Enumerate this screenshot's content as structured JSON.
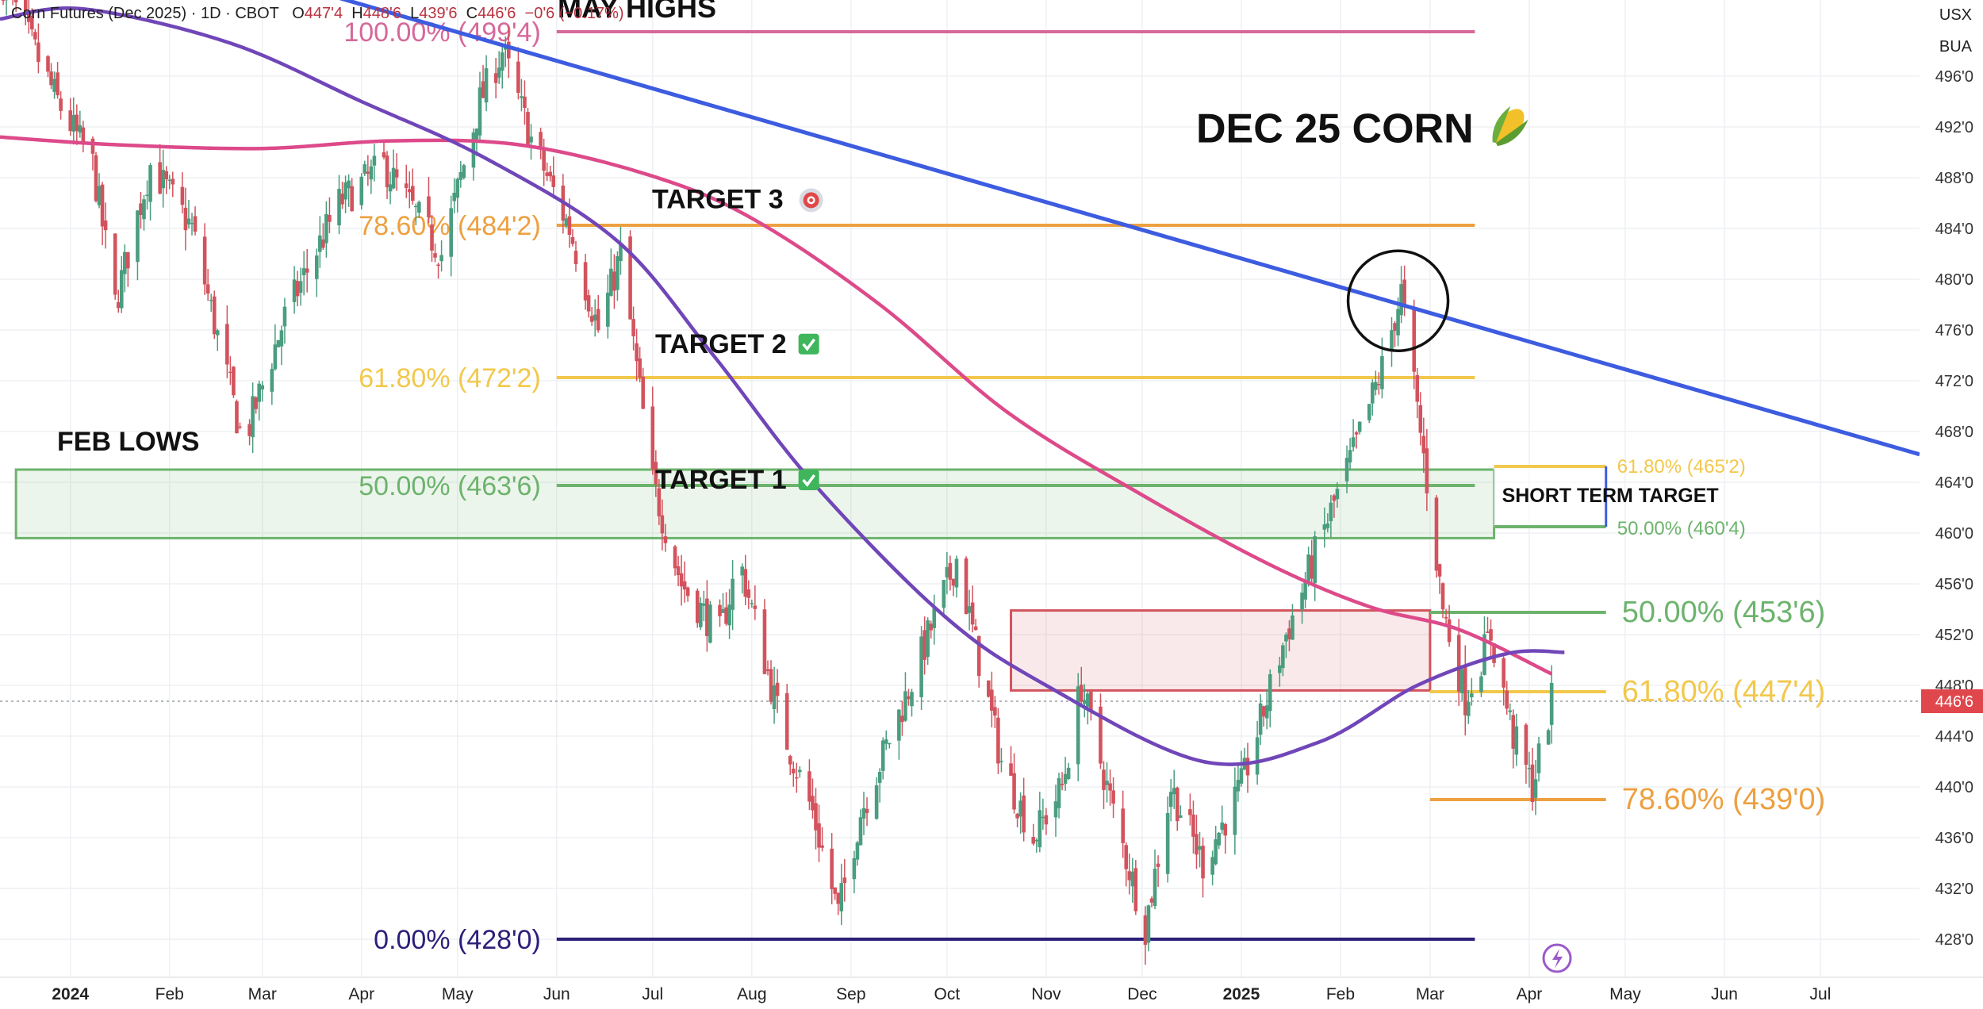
{
  "header": {
    "symbol_text": "Corn Futures (Dec 2025) · 1D · CBOT",
    "o_label": "O",
    "o_value": "447'4",
    "h_label": "H",
    "h_value": "448'6",
    "l_label": "L",
    "l_value": "439'6",
    "c_label": "C",
    "c_value": "446'6",
    "change": "−0'6 (−0.17%)"
  },
  "corner": {
    "currency": "USX",
    "unit": "BUA"
  },
  "colors": {
    "up": "#4a9d7f",
    "down": "#d2535d",
    "trend": "#3d5ce0",
    "ma_pink": "#dd4a8a",
    "ma_purple": "#7046b8",
    "fib100": "#d6689a",
    "fib786": "#eda040",
    "fib618": "#f2c84c",
    "fib50": "#6db36d",
    "fib0": "#2b1f7a",
    "price_tag": "#e0474c"
  },
  "chart_data": {
    "type": "candlestick",
    "title": "DEC 25 CORN",
    "title_icon": "corn-emoji",
    "y_axis": {
      "min": 425.0,
      "max": 502.0,
      "ticks": [
        {
          "v": 496,
          "l": "496'0"
        },
        {
          "v": 492,
          "l": "492'0"
        },
        {
          "v": 488,
          "l": "488'0"
        },
        {
          "v": 484,
          "l": "484'0"
        },
        {
          "v": 480,
          "l": "480'0"
        },
        {
          "v": 476,
          "l": "476'0"
        },
        {
          "v": 472,
          "l": "472'0"
        },
        {
          "v": 468,
          "l": "468'0"
        },
        {
          "v": 464,
          "l": "464'0"
        },
        {
          "v": 460,
          "l": "460'0"
        },
        {
          "v": 456,
          "l": "456'0"
        },
        {
          "v": 452,
          "l": "452'0"
        },
        {
          "v": 448,
          "l": "448'0"
        },
        {
          "v": 444,
          "l": "444'0"
        },
        {
          "v": 440,
          "l": "440'0"
        },
        {
          "v": 436,
          "l": "436'0"
        },
        {
          "v": 432,
          "l": "432'0"
        },
        {
          "v": 428,
          "l": "428'0"
        }
      ]
    },
    "x_axis": {
      "start": "2023-12-10",
      "end": "2025-08-01",
      "ticks": [
        {
          "date": "2024-01-01",
          "label": "2024",
          "bold": true
        },
        {
          "date": "2024-02-01",
          "label": "Feb"
        },
        {
          "date": "2024-03-01",
          "label": "Mar"
        },
        {
          "date": "2024-04-01",
          "label": "Apr"
        },
        {
          "date": "2024-05-01",
          "label": "May"
        },
        {
          "date": "2024-06-01",
          "label": "Jun"
        },
        {
          "date": "2024-07-01",
          "label": "Jul"
        },
        {
          "date": "2024-08-01",
          "label": "Aug"
        },
        {
          "date": "2024-09-01",
          "label": "Sep"
        },
        {
          "date": "2024-10-01",
          "label": "Oct"
        },
        {
          "date": "2024-11-01",
          "label": "Nov"
        },
        {
          "date": "2024-12-01",
          "label": "Dec"
        },
        {
          "date": "2025-01-01",
          "label": "2025",
          "bold": true
        },
        {
          "date": "2025-02-01",
          "label": "Feb"
        },
        {
          "date": "2025-03-01",
          "label": "Mar"
        },
        {
          "date": "2025-04-01",
          "label": "Apr"
        },
        {
          "date": "2025-05-01",
          "label": "May"
        },
        {
          "date": "2025-06-01",
          "label": "Jun"
        },
        {
          "date": "2025-07-01",
          "label": "Jul"
        }
      ]
    },
    "last_price": {
      "value": 446.75,
      "label": "446'6"
    },
    "price_path": [
      {
        "date": "2023-12-10",
        "close": 504
      },
      {
        "date": "2023-12-28",
        "close": 494
      },
      {
        "date": "2024-01-08",
        "close": 489
      },
      {
        "date": "2024-01-15",
        "close": 478
      },
      {
        "date": "2024-01-26",
        "close": 489
      },
      {
        "date": "2024-02-08",
        "close": 484
      },
      {
        "date": "2024-02-24",
        "close": 467
      },
      {
        "date": "2024-03-08",
        "close": 477
      },
      {
        "date": "2024-03-25",
        "close": 486
      },
      {
        "date": "2024-04-08",
        "close": 489
      },
      {
        "date": "2024-04-26",
        "close": 482
      },
      {
        "date": "2024-05-08",
        "close": 494
      },
      {
        "date": "2024-05-15",
        "close": 498
      },
      {
        "date": "2024-05-24",
        "close": 491
      },
      {
        "date": "2024-06-05",
        "close": 484
      },
      {
        "date": "2024-06-14",
        "close": 476
      },
      {
        "date": "2024-06-21",
        "close": 482
      },
      {
        "date": "2024-07-01",
        "close": 464
      },
      {
        "date": "2024-07-10",
        "close": 456
      },
      {
        "date": "2024-07-22",
        "close": 452
      },
      {
        "date": "2024-07-28",
        "close": 458
      },
      {
        "date": "2024-08-10",
        "close": 445
      },
      {
        "date": "2024-08-20",
        "close": 438
      },
      {
        "date": "2024-08-28",
        "close": 430
      },
      {
        "date": "2024-09-04",
        "close": 438
      },
      {
        "date": "2024-09-18",
        "close": 447
      },
      {
        "date": "2024-10-04",
        "close": 458
      },
      {
        "date": "2024-10-18",
        "close": 442
      },
      {
        "date": "2024-10-28",
        "close": 436
      },
      {
        "date": "2024-11-06",
        "close": 440
      },
      {
        "date": "2024-11-12",
        "close": 448
      },
      {
        "date": "2024-11-22",
        "close": 438
      },
      {
        "date": "2024-12-02",
        "close": 429
      },
      {
        "date": "2024-12-10",
        "close": 440
      },
      {
        "date": "2024-12-20",
        "close": 434
      },
      {
        "date": "2025-01-01",
        "close": 440
      },
      {
        "date": "2025-01-15",
        "close": 452
      },
      {
        "date": "2025-01-25",
        "close": 459
      },
      {
        "date": "2025-02-06",
        "close": 467
      },
      {
        "date": "2025-02-14",
        "close": 473
      },
      {
        "date": "2025-02-20",
        "close": 479
      },
      {
        "date": "2025-02-27",
        "close": 466
      },
      {
        "date": "2025-03-05",
        "close": 454
      },
      {
        "date": "2025-03-12",
        "close": 447
      },
      {
        "date": "2025-03-20",
        "close": 452
      },
      {
        "date": "2025-03-27",
        "close": 444
      },
      {
        "date": "2025-04-02",
        "close": 440
      },
      {
        "date": "2025-04-08",
        "close": 446.75
      }
    ],
    "moving_averages": [
      {
        "name": "pink",
        "color": "#dd4a8a",
        "points": [
          {
            "date": "2023-12-10",
            "v": 491.2
          },
          {
            "date": "2024-01-15",
            "v": 490.6
          },
          {
            "date": "2024-03-01",
            "v": 490.3
          },
          {
            "date": "2024-04-10",
            "v": 490.9
          },
          {
            "date": "2024-05-20",
            "v": 490.6
          },
          {
            "date": "2024-06-30",
            "v": 488.2
          },
          {
            "date": "2024-08-01",
            "v": 484.8
          },
          {
            "date": "2024-09-10",
            "v": 478.0
          },
          {
            "date": "2024-10-20",
            "v": 469.5
          },
          {
            "date": "2024-12-01",
            "v": 463.0
          },
          {
            "date": "2025-01-10",
            "v": 457.5
          },
          {
            "date": "2025-02-10",
            "v": 454.2
          },
          {
            "date": "2025-03-10",
            "v": 452.4
          },
          {
            "date": "2025-04-08",
            "v": 448.9
          }
        ]
      },
      {
        "name": "purple",
        "color": "#7046b8",
        "points": [
          {
            "date": "2023-12-10",
            "v": 500.5
          },
          {
            "date": "2024-01-05",
            "v": 501.3
          },
          {
            "date": "2024-02-20",
            "v": 498.6
          },
          {
            "date": "2024-04-01",
            "v": 494.0
          },
          {
            "date": "2024-05-10",
            "v": 489.5
          },
          {
            "date": "2024-06-20",
            "v": 483.0
          },
          {
            "date": "2024-07-20",
            "v": 474.0
          },
          {
            "date": "2024-08-20",
            "v": 464.0
          },
          {
            "date": "2024-09-30",
            "v": 453.5
          },
          {
            "date": "2024-11-01",
            "v": 448.0
          },
          {
            "date": "2024-12-20",
            "v": 442.0
          },
          {
            "date": "2025-01-25",
            "v": 443.5
          },
          {
            "date": "2025-02-25",
            "v": 448.0
          },
          {
            "date": "2025-03-25",
            "v": 450.5
          },
          {
            "date": "2025-04-12",
            "v": 450.6
          }
        ]
      }
    ],
    "trendline": {
      "color": "#3d5ce0",
      "from": {
        "date": "2024-02-15",
        "v": 505.0
      },
      "to": {
        "date": "2025-08-01",
        "v": 466.2
      }
    },
    "fib_levels_major": [
      {
        "pct": "100.00%",
        "text": "100.00% (499'4)",
        "v": 499.5,
        "color": "#d6689a",
        "start": "2024-06-01",
        "end": "2025-03-15"
      },
      {
        "pct": "78.60%",
        "text": "78.60% (484'2)",
        "v": 484.25,
        "color": "#eda040",
        "start": "2024-06-01",
        "end": "2025-03-15"
      },
      {
        "pct": "61.80%",
        "text": "61.80% (472'2)",
        "v": 472.25,
        "color": "#f2c84c",
        "start": "2024-06-01",
        "end": "2025-03-15"
      },
      {
        "pct": "50.00%",
        "text": "50.00% (463'6)",
        "v": 463.75,
        "color": "#6db36d",
        "start": "2024-06-01",
        "end": "2025-03-15"
      },
      {
        "pct": "0.00%",
        "text": "0.00% (428'0)",
        "v": 428.0,
        "color": "#2b1f7a",
        "start": "2024-06-01",
        "end": "2025-03-15"
      }
    ],
    "fib_levels_minor": [
      {
        "text": "50.00% (453'6)",
        "v": 453.75,
        "color": "#6db36d",
        "start": "2025-03-01",
        "end": "2025-04-25"
      },
      {
        "text": "61.80% (447'4)",
        "v": 447.5,
        "color": "#f2c84c",
        "start": "2025-03-01",
        "end": "2025-04-25"
      },
      {
        "text": "78.60% (439'0)",
        "v": 439.0,
        "color": "#eda040",
        "start": "2025-03-01",
        "end": "2025-04-25"
      }
    ],
    "short_term_target": {
      "label": "SHORT TERM TARGET",
      "top": {
        "text": "61.80% (465'2)",
        "v": 465.25,
        "color": "#f2c84c"
      },
      "bottom": {
        "text": "50.00% (460'4)",
        "v": 460.5,
        "color": "#6db36d"
      }
    },
    "zones": [
      {
        "name": "feb-lows-zone",
        "color": "#6db36d",
        "top": 465.0,
        "bottom": 459.6,
        "start": "2023-12-15",
        "end": "2025-03-21"
      },
      {
        "name": "resistance-zone",
        "color": "#d2535d",
        "top": 453.9,
        "bottom": 447.6,
        "start": "2024-10-21",
        "end": "2025-03-01"
      }
    ],
    "annotations": [
      {
        "name": "may-highs",
        "text": "MAY HIGHS"
      },
      {
        "name": "feb-lows",
        "text": "FEB LOWS"
      },
      {
        "name": "target-3",
        "text": "TARGET 3",
        "icon": "bullseye-icon"
      },
      {
        "name": "target-2",
        "text": "TARGET 2",
        "icon": "checkmark-icon"
      },
      {
        "name": "target-1",
        "text": "TARGET 1",
        "icon": "checkmark-icon"
      }
    ],
    "circle_marker": {
      "date": "2025-02-19",
      "v": 478.3
    }
  }
}
